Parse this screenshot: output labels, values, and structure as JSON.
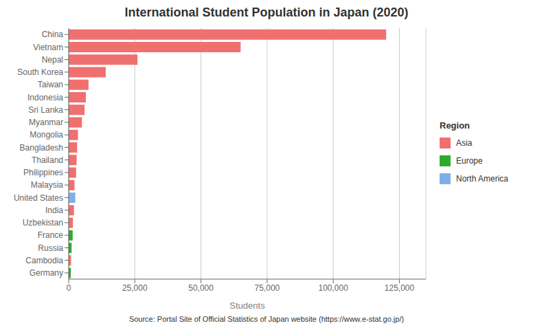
{
  "chart_data": {
    "type": "bar",
    "orientation": "horizontal",
    "title": "International Student Population in Japan (2020)",
    "xlabel": "Students",
    "source": "Source: Portal Site of Official Statistics of Japan website (https://www.e-stat.go.jp/)",
    "categories": [
      "China",
      "Vietnam",
      "Nepal",
      "South Korea",
      "Taiwan",
      "Indonesia",
      "Sri Lanka",
      "Myanmar",
      "Mongolia",
      "Bangladesh",
      "Thailand",
      "Philippines",
      "Malaysia",
      "United States",
      "India",
      "Uzbekistan",
      "France",
      "Russia",
      "Cambodia",
      "Germany"
    ],
    "values": [
      120000,
      65000,
      26000,
      14000,
      7500,
      6500,
      6000,
      5000,
      3500,
      3200,
      3000,
      2800,
      2200,
      2500,
      2000,
      1600,
      1500,
      1100,
      900,
      800
    ],
    "colors": [
      "#F07070",
      "#F07070",
      "#F07070",
      "#F07070",
      "#F07070",
      "#F07070",
      "#F07070",
      "#F07070",
      "#F07070",
      "#F07070",
      "#F07070",
      "#F07070",
      "#F07070",
      "#7EB0E8",
      "#F07070",
      "#F07070",
      "#2EAA2E",
      "#2EAA2E",
      "#F07070",
      "#2EAA2E"
    ],
    "legend": "right",
    "legend_title": "Region",
    "legend_items": [
      {
        "name": "Asia",
        "color": "#F07070"
      },
      {
        "name": "Europe",
        "color": "#2EAA2E"
      },
      {
        "name": "North America",
        "color": "#7EB0E8"
      }
    ],
    "xlim": [
      0,
      135000
    ],
    "xticks": [
      0,
      {
        "value": 25000,
        "label": "25,000"
      },
      {
        "value": 50000,
        "label": "50,000"
      },
      {
        "value": 75000,
        "label": "75,000"
      },
      {
        "value": 100000,
        "label": "100,000"
      },
      {
        "value": 125000,
        "label": "125,000"
      }
    ],
    "grid": true
  }
}
